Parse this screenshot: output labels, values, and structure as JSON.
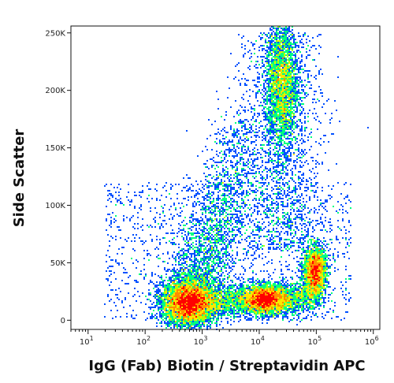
{
  "chart_data": {
    "type": "scatter",
    "subtype": "flow-cytometry-density-dot-plot",
    "xlabel": "IgG (Fab) Biotin / Streptavidin APC",
    "ylabel": "Side Scatter",
    "x_scale": "log",
    "xlim": [
      5,
      1300000
    ],
    "y_scale": "linear",
    "ylim": [
      -8000,
      256000
    ],
    "x_ticks": [
      {
        "value": 10,
        "base": "10",
        "exp": "1"
      },
      {
        "value": 100,
        "base": "10",
        "exp": "2"
      },
      {
        "value": 1000,
        "base": "10",
        "exp": "3"
      },
      {
        "value": 10000,
        "base": "10",
        "exp": "4"
      },
      {
        "value": 100000,
        "base": "10",
        "exp": "5"
      },
      {
        "value": 1000000,
        "base": "10",
        "exp": "6"
      }
    ],
    "y_ticks": [
      {
        "value": 0,
        "label": "0"
      },
      {
        "value": 50000,
        "label": "50K"
      },
      {
        "value": 100000,
        "label": "100K"
      },
      {
        "value": 150000,
        "label": "150K"
      },
      {
        "value": 200000,
        "label": "200K"
      },
      {
        "value": 250000,
        "label": "250K"
      }
    ],
    "grid": false,
    "legend": "none",
    "density_colormap": [
      "#0000c8",
      "#0050ff",
      "#00c8ff",
      "#00ff80",
      "#b4ff00",
      "#ffe600",
      "#ff8c00",
      "#ff0000"
    ],
    "populations": [
      {
        "center_x": 550,
        "center_y": 15000,
        "spread_log_x": 0.22,
        "spread_y": 10000,
        "relative_density": 1.0
      },
      {
        "center_x": 13000,
        "center_y": 18000,
        "spread_log_x": 0.2,
        "spread_y": 6000,
        "relative_density": 0.55
      },
      {
        "center_x": 25000,
        "center_y": 205000,
        "spread_log_x": 0.14,
        "spread_y": 28000,
        "relative_density": 0.55
      },
      {
        "center_x": 95000,
        "center_y": 42000,
        "spread_log_x": 0.1,
        "spread_y": 11000,
        "relative_density": 0.5
      }
    ]
  }
}
